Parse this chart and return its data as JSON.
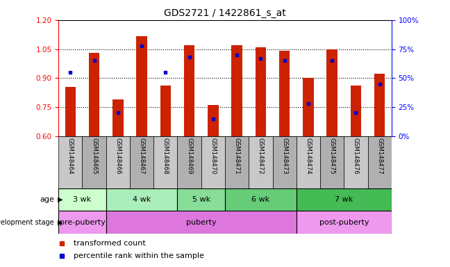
{
  "title": "GDS2721 / 1422861_s_at",
  "samples": [
    "GSM148464",
    "GSM148465",
    "GSM148466",
    "GSM148467",
    "GSM148468",
    "GSM148469",
    "GSM148470",
    "GSM148471",
    "GSM148472",
    "GSM148473",
    "GSM148474",
    "GSM148475",
    "GSM148476",
    "GSM148477"
  ],
  "bar_tops": [
    0.855,
    1.03,
    0.79,
    1.115,
    0.863,
    1.07,
    0.762,
    1.07,
    1.06,
    1.04,
    0.9,
    1.05,
    0.86,
    0.922
  ],
  "bar_bottom": 0.6,
  "percentiles": [
    55,
    65,
    20,
    78,
    55,
    68,
    15,
    70,
    67,
    65,
    28,
    65,
    20,
    45
  ],
  "ylim": [
    0.6,
    1.2
  ],
  "y_ticks": [
    0.6,
    0.75,
    0.9,
    1.05,
    1.2
  ],
  "right_ylim": [
    0,
    100
  ],
  "right_yticks": [
    0,
    25,
    50,
    75,
    100
  ],
  "right_yticklabels": [
    "0%",
    "25%",
    "50%",
    "75%",
    "100%"
  ],
  "bar_color": "#CC2200",
  "dot_color": "#0000CC",
  "background_color": "#FFFFFF",
  "age_groups": [
    {
      "label": "3 wk",
      "start": 0,
      "end": 2,
      "color": "#CCFFCC"
    },
    {
      "label": "4 wk",
      "start": 2,
      "end": 5,
      "color": "#AAEEBB"
    },
    {
      "label": "5 wk",
      "start": 5,
      "end": 7,
      "color": "#88DD99"
    },
    {
      "label": "6 wk",
      "start": 7,
      "end": 10,
      "color": "#66CC77"
    },
    {
      "label": "7 wk",
      "start": 10,
      "end": 14,
      "color": "#44BB55"
    }
  ],
  "dev_groups": [
    {
      "label": "pre-puberty",
      "start": 0,
      "end": 2,
      "color": "#EE99EE"
    },
    {
      "label": "puberty",
      "start": 2,
      "end": 10,
      "color": "#DD77DD"
    },
    {
      "label": "post-puberty",
      "start": 10,
      "end": 14,
      "color": "#EE99EE"
    }
  ],
  "legend_red_label": "transformed count",
  "legend_blue_label": "percentile rank within the sample",
  "grid_yticks": [
    0.75,
    0.9,
    1.05
  ]
}
